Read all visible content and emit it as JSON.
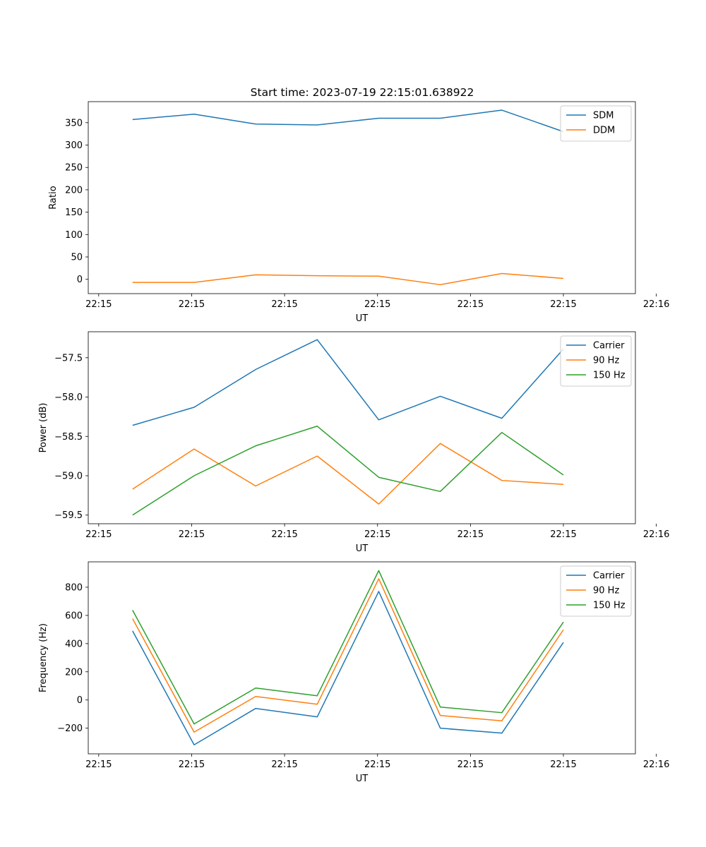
{
  "figure": {
    "title": "Start time: 2023-07-19 22:15:01.638922"
  },
  "colors": {
    "blue": "#1f77b4",
    "orange": "#ff7f0e",
    "green": "#2ca02c"
  },
  "chart_data": [
    {
      "type": "line",
      "title": "Start time: 2023-07-19 22:15:01.638922",
      "xlabel": "UT",
      "ylabel": "Ratio",
      "x": [
        1,
        2,
        3,
        4,
        5,
        6,
        7,
        8
      ],
      "xlim": [
        0.28,
        9.17
      ],
      "x_ticks": [
        0.45,
        1.96,
        3.47,
        4.98,
        6.49,
        8.0,
        9.51
      ],
      "x_tick_labels": [
        "22:15",
        "22:15",
        "22:15",
        "22:15",
        "22:15",
        "22:15",
        "22:16"
      ],
      "ylim": [
        -32,
        397
      ],
      "y_ticks": [
        0,
        50,
        100,
        150,
        200,
        250,
        300,
        350
      ],
      "y_tick_labels": [
        "0",
        "50",
        "100",
        "150",
        "200",
        "250",
        "300",
        "350"
      ],
      "legend": "top-right",
      "series": [
        {
          "name": "SDM",
          "color": "#1f77b4",
          "values": [
            357,
            369,
            347,
            345,
            360,
            360,
            378,
            330
          ]
        },
        {
          "name": "DDM",
          "color": "#ff7f0e",
          "values": [
            -7,
            -7,
            10,
            8,
            7,
            -12,
            13,
            2
          ]
        }
      ]
    },
    {
      "type": "line",
      "xlabel": "UT",
      "ylabel": "Power (dB)",
      "x": [
        1,
        2,
        3,
        4,
        5,
        6,
        7,
        8
      ],
      "xlim": [
        0.28,
        9.17
      ],
      "x_ticks": [
        0.45,
        1.96,
        3.47,
        4.98,
        6.49,
        8.0,
        9.51
      ],
      "x_tick_labels": [
        "22:15",
        "22:15",
        "22:15",
        "22:15",
        "22:15",
        "22:15",
        "22:16"
      ],
      "ylim": [
        -59.61,
        -57.17
      ],
      "y_ticks": [
        -59.5,
        -59.0,
        -58.5,
        -58.0,
        -57.5
      ],
      "y_tick_labels": [
        "−59.5",
        "−59.0",
        "−58.5",
        "−58.0",
        "−57.5"
      ],
      "legend": "top-right",
      "series": [
        {
          "name": "Carrier",
          "color": "#1f77b4",
          "values": [
            -58.36,
            -58.13,
            -57.65,
            -57.27,
            -58.29,
            -57.99,
            -58.27,
            -57.39
          ]
        },
        {
          "name": "90 Hz",
          "color": "#ff7f0e",
          "values": [
            -59.17,
            -58.66,
            -59.13,
            -58.75,
            -59.36,
            -58.59,
            -59.06,
            -59.11
          ]
        },
        {
          "name": "150 Hz",
          "color": "#2ca02c",
          "values": [
            -59.5,
            -59.0,
            -58.62,
            -58.37,
            -59.02,
            -59.2,
            -58.45,
            -58.99
          ]
        }
      ]
    },
    {
      "type": "line",
      "xlabel": "UT",
      "ylabel": "Frequency (Hz)",
      "x": [
        1,
        2,
        3,
        4,
        5,
        6,
        7,
        8
      ],
      "xlim": [
        0.28,
        9.17
      ],
      "x_ticks": [
        0.45,
        1.96,
        3.47,
        4.98,
        6.49,
        8.0,
        9.51
      ],
      "x_tick_labels": [
        "22:15",
        "22:15",
        "22:15",
        "22:15",
        "22:15",
        "22:15",
        "22:16"
      ],
      "ylim": [
        -382,
        980
      ],
      "y_ticks": [
        -200,
        0,
        200,
        400,
        600,
        800
      ],
      "y_tick_labels": [
        "−200",
        "0",
        "200",
        "400",
        "600",
        "800"
      ],
      "legend": "top-right",
      "series": [
        {
          "name": "Carrier",
          "color": "#1f77b4",
          "values": [
            490,
            -318,
            -60,
            -120,
            770,
            -200,
            -235,
            408
          ]
        },
        {
          "name": "90 Hz",
          "color": "#ff7f0e",
          "values": [
            577,
            -228,
            25,
            -30,
            860,
            -110,
            -148,
            498
          ]
        },
        {
          "name": "150 Hz",
          "color": "#2ca02c",
          "values": [
            637,
            -170,
            85,
            30,
            918,
            -50,
            -90,
            553
          ]
        }
      ]
    }
  ]
}
